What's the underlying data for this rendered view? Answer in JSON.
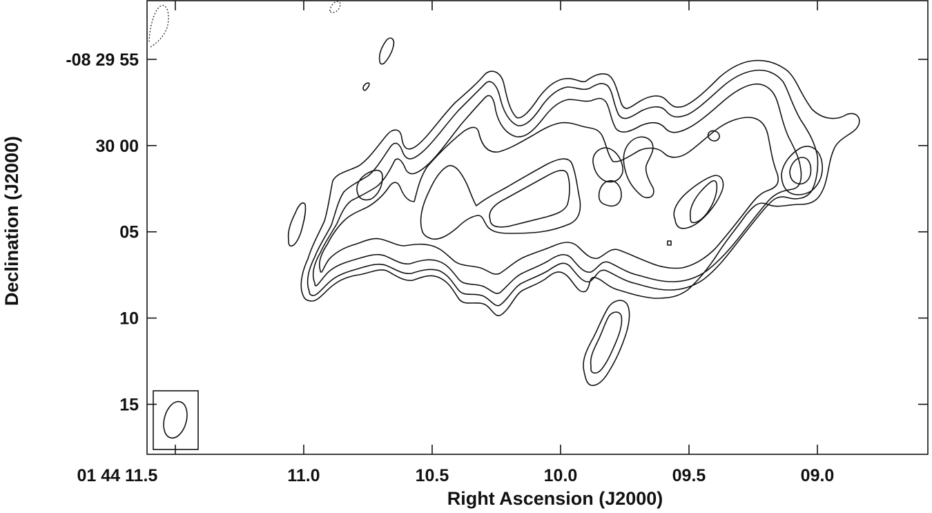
{
  "chart_data": {
    "type": "contour",
    "xlabel": "Right Ascension (J2000)",
    "ylabel": "Declination (J2000)",
    "x_axis": {
      "unit": "seconds of RA offset",
      "ticks": [
        {
          "value": 11.5,
          "label": "01 44 11.5"
        },
        {
          "value": 11.0,
          "label": "11.0"
        },
        {
          "value": 10.5,
          "label": "10.5"
        },
        {
          "value": 10.0,
          "label": "10.0"
        },
        {
          "value": 9.5,
          "label": "09.5"
        },
        {
          "value": 9.0,
          "label": "09.0"
        }
      ],
      "range": [
        11.61,
        8.57
      ],
      "inverted": true
    },
    "y_axis": {
      "unit": "arcsec of Dec offset",
      "ticks": [
        {
          "value": -5,
          "label": "-08 29 55"
        },
        {
          "value": 0,
          "label": "30 00"
        },
        {
          "value": 5,
          "label": "05"
        },
        {
          "value": 10,
          "label": "10"
        },
        {
          "value": 15,
          "label": "15"
        }
      ],
      "range": [
        -8.4,
        17.9
      ]
    },
    "beam": {
      "x": 11.54,
      "y": 16.0,
      "major_arcsec": 2.2,
      "minor_arcsec": 1.4,
      "pa_deg": 15
    },
    "contour_style": {
      "positive": "solid",
      "negative": "dashed"
    },
    "grid": false
  }
}
